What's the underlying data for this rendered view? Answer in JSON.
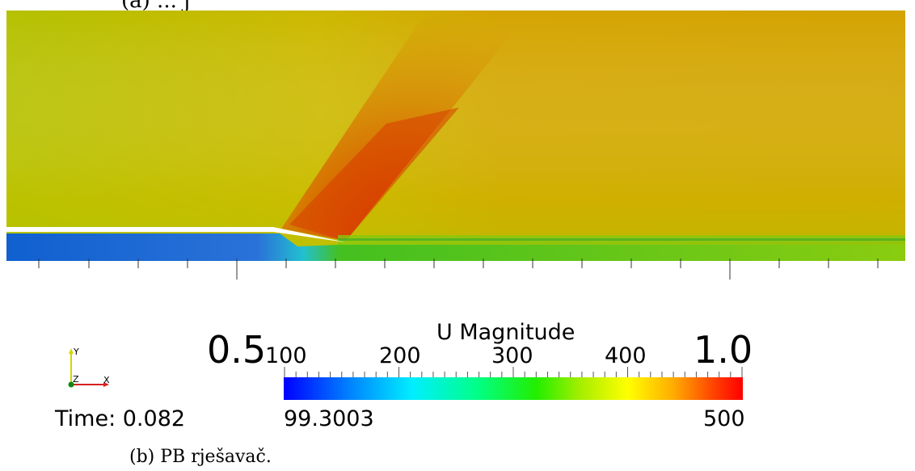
{
  "top_caption": "(a) ... j",
  "time_label": "Time: 0.082",
  "scale_left": "0.5",
  "scale_right": "1.0",
  "colorbar": {
    "title": "U Magnitude",
    "ticks": [
      "100",
      "200",
      "300",
      "400"
    ],
    "min_label": "99.3003",
    "max_label": "500",
    "colormap": [
      "#0000ff",
      "#00eeff",
      "#22ee00",
      "#ffff00",
      "#ff0000"
    ]
  },
  "axes": {
    "y": "Y",
    "z": "Z",
    "x": "X"
  },
  "caption": "(b) PB rješavač."
}
